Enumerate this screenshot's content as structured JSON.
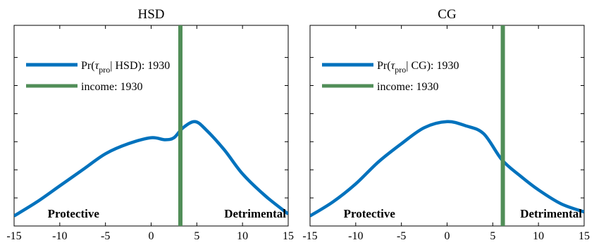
{
  "chart_data": [
    {
      "type": "line",
      "title": "HSD",
      "xlabel": "",
      "ylabel": "",
      "xlim": [
        -15,
        15
      ],
      "xticks": [
        -15,
        -10,
        -5,
        0,
        5,
        10,
        15
      ],
      "xtick_labels": [
        "-15",
        "-10",
        "-5",
        "0",
        "5",
        "10",
        "15"
      ],
      "ylim": [
        0,
        1
      ],
      "grid": false,
      "legend_position": "top-left",
      "series": [
        {
          "name": "Pr(τ_pro | HSD): 1930",
          "legend_main": "Pr(",
          "legend_tau": "τ",
          "legend_sub": "pro",
          "legend_rest": "| HSD): 1930",
          "color": "#0072bd",
          "x": [
            -15,
            -12.5,
            -10,
            -7.5,
            -5,
            -2.5,
            0,
            1.5,
            2.5,
            3.5,
            4.8,
            6,
            8,
            10,
            12.5,
            15
          ],
          "y": [
            0.05,
            0.12,
            0.2,
            0.28,
            0.36,
            0.41,
            0.44,
            0.43,
            0.44,
            0.49,
            0.52,
            0.48,
            0.38,
            0.26,
            0.15,
            0.06
          ]
        },
        {
          "name": "income: 1930",
          "legend_label": "income: 1930",
          "color": "#518e58",
          "type": "vline",
          "x": 3.2
        }
      ],
      "annotations": [
        {
          "text": "Protective",
          "x": -8.5,
          "anchor": "middle"
        },
        {
          "text": "Detrimental",
          "x": 15,
          "anchor": "end"
        }
      ]
    },
    {
      "type": "line",
      "title": "CG",
      "xlabel": "",
      "ylabel": "",
      "xlim": [
        -15,
        15
      ],
      "xticks": [
        -15,
        -10,
        -5,
        0,
        5,
        10,
        15
      ],
      "xtick_labels": [
        "-15",
        "-10",
        "-5",
        "0",
        "5",
        "10",
        "15"
      ],
      "ylim": [
        0,
        1
      ],
      "grid": false,
      "legend_position": "top-left",
      "series": [
        {
          "name": "Pr(τ_pro | CG): 1930",
          "legend_main": "Pr(",
          "legend_tau": "τ",
          "legend_sub": "pro",
          "legend_rest": "| CG): 1930",
          "color": "#0072bd",
          "x": [
            -15,
            -12.5,
            -10,
            -7.5,
            -5,
            -2.5,
            0,
            2,
            4,
            6,
            8,
            10,
            12.5,
            15
          ],
          "y": [
            0.05,
            0.12,
            0.21,
            0.32,
            0.41,
            0.49,
            0.52,
            0.5,
            0.46,
            0.33,
            0.25,
            0.18,
            0.11,
            0.07
          ]
        },
        {
          "name": "income: 1930",
          "legend_label": "income: 1930",
          "color": "#518e58",
          "type": "vline",
          "x": 6.1
        }
      ],
      "annotations": [
        {
          "text": "Protective",
          "x": -8.5,
          "anchor": "middle"
        },
        {
          "text": "Detrimental",
          "x": 15,
          "anchor": "end"
        }
      ]
    }
  ]
}
